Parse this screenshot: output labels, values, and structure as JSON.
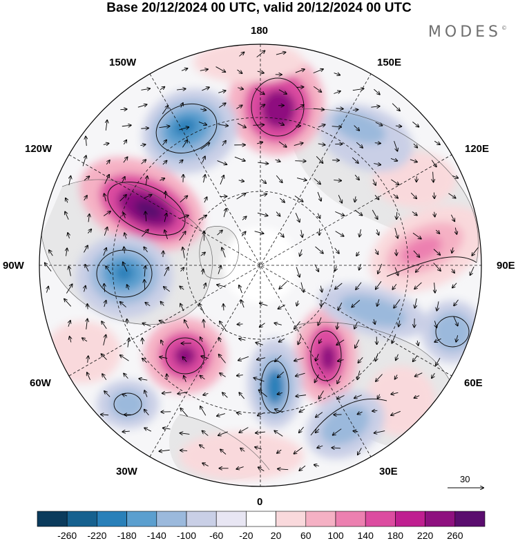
{
  "title": "Base 20/12/2024 00 UTC, valid 20/12/2024 00 UTC",
  "brand": "MODES",
  "brand_mark": "©",
  "longitude_labels": {
    "top": "180",
    "bottom": "0",
    "left": "90W",
    "right": "90E",
    "upper_left_1": "150W",
    "upper_left_2": "120W",
    "lower_left_1": "60W",
    "lower_left_2": "30W",
    "upper_right_1": "150E",
    "upper_right_2": "120E",
    "lower_right_1": "60E",
    "lower_right_2": "30E"
  },
  "vector_reference": {
    "label": "30"
  },
  "colorbar": {
    "colors": [
      "#0b3b5c",
      "#16618f",
      "#2980b9",
      "#5b9fcf",
      "#9bb9dc",
      "#c9cfe6",
      "#e8e6f3",
      "#ffffff",
      "#f9d9dc",
      "#f5b1c4",
      "#ec80b0",
      "#dc4ca0",
      "#bf1f90",
      "#8e117f",
      "#5a0d6e"
    ],
    "tick_labels": [
      "-260",
      "-220",
      "-180",
      "-140",
      "-100",
      "-60",
      "-20",
      "20",
      "60",
      "100",
      "140",
      "180",
      "220",
      "260"
    ]
  },
  "map_data": {
    "projection": "north-polar-stereographic",
    "field_colors": {
      "land": "#f2f2f2",
      "ocean": "#ffffff",
      "coast": "#555555",
      "grid": "#111111"
    }
  }
}
